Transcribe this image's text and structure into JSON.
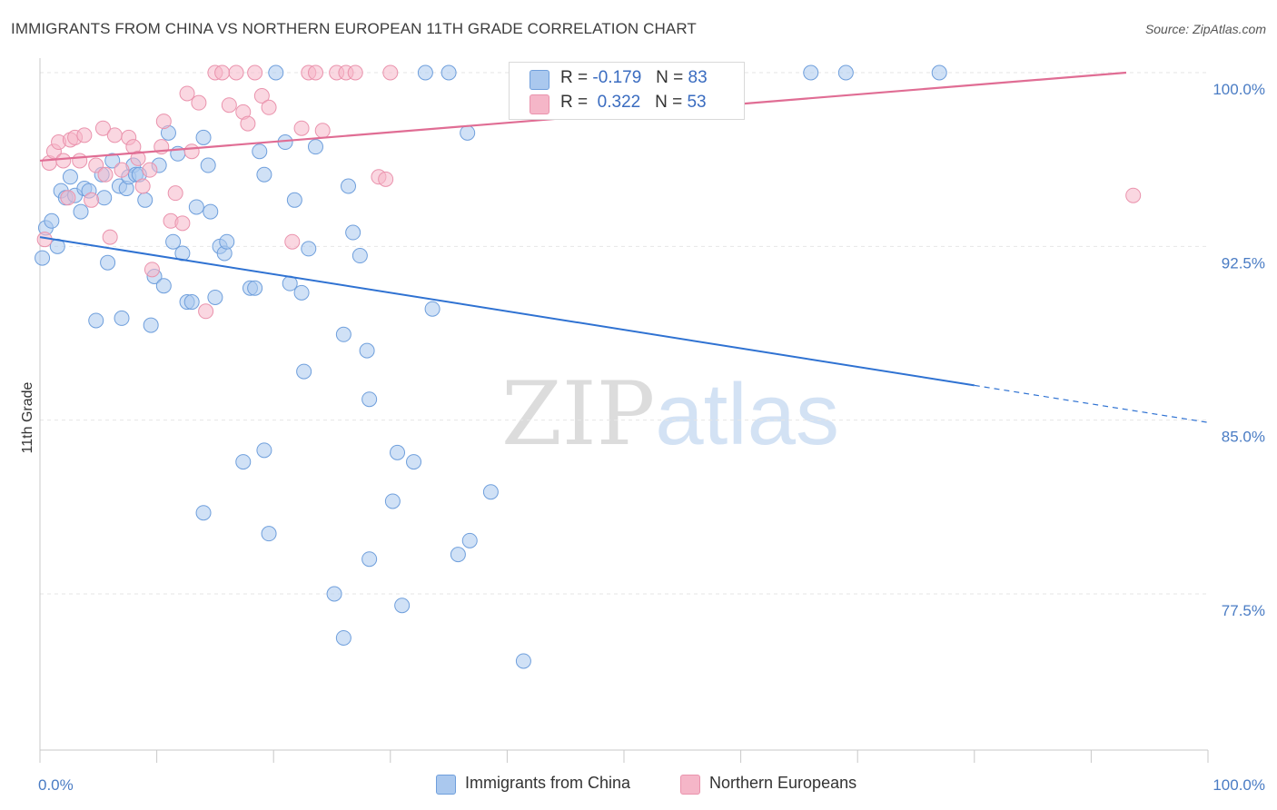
{
  "title": "IMMIGRANTS FROM CHINA VS NORTHERN EUROPEAN 11TH GRADE CORRELATION CHART",
  "source": "Source: ZipAtlas.com",
  "watermark": {
    "zip": "ZIP",
    "atlas": "atlas"
  },
  "legend": {
    "rows": [
      {
        "r_label": "R =",
        "r_value": "-0.179",
        "n_label": "N =",
        "n_value": "83"
      },
      {
        "r_label": "R =",
        "r_value": "0.322",
        "n_label": "N =",
        "n_value": "53"
      }
    ]
  },
  "colors": {
    "china_fill": "#aac8ee",
    "china_stroke": "#6f9fdc",
    "china_line": "#2f72d2",
    "europe_fill": "#f5b6c8",
    "europe_stroke": "#ea93ad",
    "europe_line": "#e06d94",
    "grid": "#e6e6e6",
    "axis_text": "#4a7cc4"
  },
  "chart_data": {
    "type": "scatter",
    "title": "IMMIGRANTS FROM CHINA VS NORTHERN EUROPEAN 11TH GRADE CORRELATION CHART",
    "xlabel": "",
    "ylabel": "11th Grade",
    "xlim": [
      0,
      100
    ],
    "ylim": [
      70.5,
      100.5
    ],
    "x_tick_labels": [
      "0.0%",
      "100.0%"
    ],
    "y_ticks": [
      77.5,
      85.0,
      92.5,
      100.0
    ],
    "y_tick_labels": [
      "77.5%",
      "85.0%",
      "92.5%",
      "100.0%"
    ],
    "grid": true,
    "legend_position": "top-center",
    "series": [
      {
        "name": "Immigrants from China",
        "r": -0.179,
        "n": 83,
        "trend": {
          "x0": 0,
          "y0": 92.9,
          "x1": 80,
          "y1": 86.5,
          "dash_to_x": 100,
          "dash_to_y": 84.9
        },
        "points": [
          [
            0.2,
            92.0
          ],
          [
            0.5,
            93.3
          ],
          [
            1.0,
            93.6
          ],
          [
            1.5,
            92.5
          ],
          [
            1.8,
            94.9
          ],
          [
            2.2,
            94.6
          ],
          [
            2.6,
            95.5
          ],
          [
            3.0,
            94.7
          ],
          [
            3.5,
            94.0
          ],
          [
            3.8,
            95.0
          ],
          [
            4.2,
            94.9
          ],
          [
            4.8,
            89.3
          ],
          [
            5.3,
            95.6
          ],
          [
            5.5,
            94.6
          ],
          [
            5.8,
            91.8
          ],
          [
            6.2,
            96.2
          ],
          [
            6.8,
            95.1
          ],
          [
            7.0,
            89.4
          ],
          [
            7.4,
            95.0
          ],
          [
            7.6,
            95.5
          ],
          [
            8.0,
            96.0
          ],
          [
            8.2,
            95.6
          ],
          [
            8.5,
            95.6
          ],
          [
            9.0,
            94.5
          ],
          [
            9.5,
            89.1
          ],
          [
            9.8,
            91.2
          ],
          [
            10.2,
            96.0
          ],
          [
            10.6,
            90.8
          ],
          [
            11.0,
            97.4
          ],
          [
            11.4,
            92.7
          ],
          [
            11.8,
            96.5
          ],
          [
            12.2,
            92.2
          ],
          [
            12.6,
            90.1
          ],
          [
            13.0,
            90.1
          ],
          [
            13.4,
            94.2
          ],
          [
            14.0,
            97.2
          ],
          [
            14.4,
            96.0
          ],
          [
            14.6,
            94.0
          ],
          [
            15.0,
            90.3
          ],
          [
            15.4,
            92.5
          ],
          [
            15.8,
            92.2
          ],
          [
            16.0,
            92.7
          ],
          [
            18.0,
            90.7
          ],
          [
            18.4,
            90.7
          ],
          [
            18.8,
            96.6
          ],
          [
            19.2,
            95.6
          ],
          [
            20.2,
            100.0
          ],
          [
            21.0,
            97.0
          ],
          [
            21.4,
            90.9
          ],
          [
            21.8,
            94.5
          ],
          [
            22.4,
            90.5
          ],
          [
            22.6,
            87.1
          ],
          [
            23.0,
            92.4
          ],
          [
            23.6,
            96.8
          ],
          [
            26.0,
            88.7
          ],
          [
            26.4,
            95.1
          ],
          [
            26.8,
            93.1
          ],
          [
            27.4,
            92.1
          ],
          [
            28.0,
            88.0
          ],
          [
            28.2,
            85.9
          ],
          [
            17.4,
            83.2
          ],
          [
            19.2,
            83.7
          ],
          [
            14.0,
            81.0
          ],
          [
            19.6,
            80.1
          ],
          [
            25.2,
            77.5
          ],
          [
            26.0,
            75.6
          ],
          [
            28.2,
            79.0
          ],
          [
            30.2,
            81.5
          ],
          [
            30.6,
            83.6
          ],
          [
            31.0,
            77.0
          ],
          [
            32.0,
            83.2
          ],
          [
            33.0,
            100.0
          ],
          [
            33.6,
            89.8
          ],
          [
            35.0,
            100.0
          ],
          [
            35.8,
            79.2
          ],
          [
            36.8,
            79.8
          ],
          [
            36.6,
            97.4
          ],
          [
            38.6,
            81.9
          ],
          [
            41.4,
            74.6
          ],
          [
            59.0,
            100.0
          ],
          [
            66.0,
            100.0
          ],
          [
            69.0,
            100.0
          ],
          [
            77.0,
            100.0
          ]
        ]
      },
      {
        "name": "Northern Europeans",
        "r": 0.322,
        "n": 53,
        "trend": {
          "x0": 0,
          "y0": 96.2,
          "x1": 93,
          "y1": 100.0
        },
        "points": [
          [
            0.4,
            92.8
          ],
          [
            0.8,
            96.1
          ],
          [
            1.2,
            96.6
          ],
          [
            1.6,
            97.0
          ],
          [
            2.0,
            96.2
          ],
          [
            2.4,
            94.6
          ],
          [
            2.6,
            97.1
          ],
          [
            3.0,
            97.2
          ],
          [
            3.4,
            96.2
          ],
          [
            3.8,
            97.3
          ],
          [
            4.4,
            94.5
          ],
          [
            4.8,
            96.0
          ],
          [
            5.4,
            97.6
          ],
          [
            5.6,
            95.6
          ],
          [
            6.0,
            92.9
          ],
          [
            6.4,
            97.3
          ],
          [
            7.0,
            95.8
          ],
          [
            7.6,
            97.2
          ],
          [
            8.0,
            96.8
          ],
          [
            8.4,
            96.3
          ],
          [
            8.8,
            95.1
          ],
          [
            9.4,
            95.8
          ],
          [
            9.6,
            91.5
          ],
          [
            10.4,
            96.8
          ],
          [
            10.6,
            97.9
          ],
          [
            11.2,
            93.6
          ],
          [
            11.6,
            94.8
          ],
          [
            12.2,
            93.5
          ],
          [
            12.6,
            99.1
          ],
          [
            13.0,
            96.6
          ],
          [
            13.6,
            98.7
          ],
          [
            14.2,
            89.7
          ],
          [
            15.0,
            100.0
          ],
          [
            15.6,
            100.0
          ],
          [
            16.2,
            98.6
          ],
          [
            16.8,
            100.0
          ],
          [
            17.4,
            98.3
          ],
          [
            17.8,
            97.8
          ],
          [
            18.4,
            100.0
          ],
          [
            19.0,
            99.0
          ],
          [
            19.6,
            98.5
          ],
          [
            21.6,
            92.7
          ],
          [
            22.4,
            97.6
          ],
          [
            23.0,
            100.0
          ],
          [
            23.6,
            100.0
          ],
          [
            24.2,
            97.5
          ],
          [
            25.4,
            100.0
          ],
          [
            26.2,
            100.0
          ],
          [
            27.0,
            100.0
          ],
          [
            29.0,
            95.5
          ],
          [
            29.6,
            95.4
          ],
          [
            30.0,
            100.0
          ],
          [
            93.6,
            94.7
          ]
        ]
      }
    ]
  },
  "bottom_legend": {
    "items": [
      {
        "label": "Immigrants from China"
      },
      {
        "label": "Northern Europeans"
      }
    ]
  }
}
